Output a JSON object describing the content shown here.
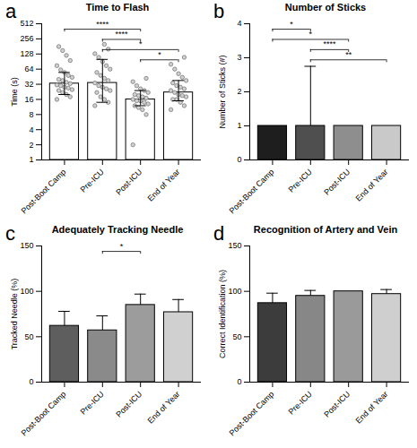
{
  "chart_data": [
    {
      "panel_label": "a",
      "type": "bar",
      "title": "Time to Flash",
      "y_label": "Time (s)",
      "categories": [
        "Post-Boot Camp",
        "Pre-ICU",
        "Post-ICU",
        "End of Year"
      ],
      "values": [
        33,
        34,
        16,
        22
      ],
      "error_low": [
        20,
        14,
        12,
        15
      ],
      "error_high": [
        55,
        100,
        24,
        38
      ],
      "points": [
        [
          16,
          18,
          20,
          22,
          24,
          25,
          27,
          28,
          30,
          31,
          33,
          35,
          38,
          40,
          44,
          48,
          55,
          62,
          75,
          95,
          120,
          150,
          180
        ],
        [
          12,
          14,
          16,
          18,
          22,
          24,
          26,
          28,
          30,
          34,
          38,
          42,
          48,
          55,
          64,
          75,
          90,
          110,
          130,
          160,
          200
        ],
        [
          2,
          8,
          10,
          11,
          12,
          13,
          14,
          15,
          15,
          16,
          17,
          18,
          19,
          20,
          22,
          24,
          26,
          30,
          36,
          42
        ],
        [
          10,
          12,
          14,
          16,
          16,
          18,
          19,
          20,
          22,
          24,
          26,
          28,
          30,
          34,
          38,
          44,
          52,
          64,
          80,
          110
        ]
      ],
      "ylim": [
        1,
        512
      ],
      "yticks": [
        1,
        2,
        4,
        8,
        16,
        32,
        64,
        128,
        256,
        512
      ],
      "log": "y",
      "grid": false,
      "marker": "circle",
      "colors": [
        "#ffffff",
        "#ffffff",
        "#ffffff",
        "#ffffff"
      ],
      "annotations": [
        {
          "from": "Post-Boot Camp",
          "to": "Post-ICU",
          "text": "****"
        },
        {
          "from": "Pre-ICU",
          "to": "Post-ICU",
          "text": "****"
        },
        {
          "from": "Pre-ICU",
          "to": "End of Year",
          "text": "*"
        },
        {
          "from": "Post-ICU",
          "to": "End of Year",
          "text": "*"
        }
      ]
    },
    {
      "panel_label": "b",
      "type": "bar",
      "title": "Number of Sticks",
      "y_label": "Number of Sticks (#)",
      "categories": [
        "Post-Boot Camp",
        "Pre-ICU",
        "Post-ICU",
        "End of Year"
      ],
      "values": [
        1,
        1,
        1,
        1
      ],
      "error_high": [
        null,
        2.75,
        null,
        null
      ],
      "ylim": [
        0,
        4
      ],
      "yticks": [
        0,
        1,
        2,
        3,
        4
      ],
      "grid": false,
      "colors": [
        "#1e1e1e",
        "#4f4f4f",
        "#8e8e8e",
        "#c9c9c9"
      ],
      "annotations": [
        {
          "from": "Post-Boot Camp",
          "to": "Pre-ICU",
          "text": "*"
        },
        {
          "from": "Post-Boot Camp",
          "to": "Post-ICU",
          "text": "*"
        },
        {
          "from": "Pre-ICU",
          "to": "Post-ICU",
          "text": "****"
        },
        {
          "from": "Pre-ICU",
          "to": "End of Year",
          "text": "**"
        }
      ]
    },
    {
      "panel_label": "c",
      "type": "bar",
      "title": "Adequately Tracking Needle",
      "y_label": "Tracked Needle (%)",
      "categories": [
        "Post-Boot Camp",
        "Pre-ICU",
        "Post-ICU",
        "End of Year"
      ],
      "values": [
        62,
        57,
        85,
        77
      ],
      "error_high": [
        78,
        73,
        97,
        91
      ],
      "ylim": [
        0,
        150
      ],
      "yticks": [
        0,
        50,
        100,
        150
      ],
      "grid": false,
      "colors": [
        "#5e5e5e",
        "#8a8a8a",
        "#9c9c9c",
        "#d0d0d0"
      ],
      "annotations": [
        {
          "from": "Pre-ICU",
          "to": "Post-ICU",
          "text": "*"
        }
      ]
    },
    {
      "panel_label": "d",
      "type": "bar",
      "title": "Recognition of Artery and Vein",
      "y_label": "Correct Identification (%)",
      "categories": [
        "Post-Boot Camp",
        "Pre-ICU",
        "Post-ICU",
        "End of Year"
      ],
      "values": [
        87,
        95,
        100,
        97
      ],
      "error_high": [
        98,
        101,
        null,
        102
      ],
      "ylim": [
        0,
        150
      ],
      "yticks": [
        0,
        50,
        100,
        150
      ],
      "grid": false,
      "colors": [
        "#3c3c3c",
        "#878787",
        "#9a9a9a",
        "#cfcfcf"
      ]
    }
  ]
}
